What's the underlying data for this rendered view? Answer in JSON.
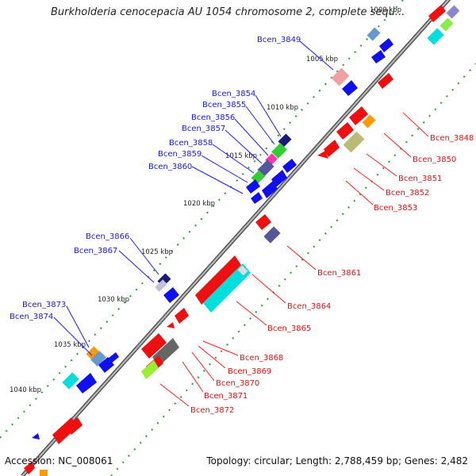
{
  "title": "Burkholderia cenocepacia AU 1054 chromosome 2, complete sequ...",
  "footer": {
    "accession": "Accession: NC_008061",
    "topology": "Topology: circular; Length: 2,788,459 bp; Genes: 2,482"
  },
  "kbp_labels": [
    "1000 kbp",
    "1005 kbp",
    "1010 kbp",
    "1015 kbp",
    "1020 kbp",
    "1025 kbp",
    "1030 kbp",
    "1035 kbp",
    "1040 kbp"
  ],
  "left_genes": [
    "Bcen_3849",
    "Bcen_3854",
    "Bcen_3855",
    "Bcen_3856",
    "Bcen_3857",
    "Bcen_3858",
    "Bcen_3859",
    "Bcen_3860",
    "Bcen_3866",
    "Bcen_3867",
    "Bcen_3873",
    "Bcen_3874"
  ],
  "right_genes": [
    "Bcen_3848",
    "Bcen_3850",
    "Bcen_3851",
    "Bcen_3852",
    "Bcen_3853",
    "Bcen_3861",
    "Bcen_3864",
    "Bcen_3865",
    "Bcen_3868",
    "Bcen_3869",
    "Bcen_3870",
    "Bcen_3871",
    "Bcen_3872"
  ],
  "colors": {
    "backbone": "#888888",
    "forward_cds": "#1010ee",
    "reverse_cds": "#ee1010",
    "label_left": "#1a1ad0",
    "label_right": "#e01010",
    "gc_ticks": "#2a9a2a"
  }
}
